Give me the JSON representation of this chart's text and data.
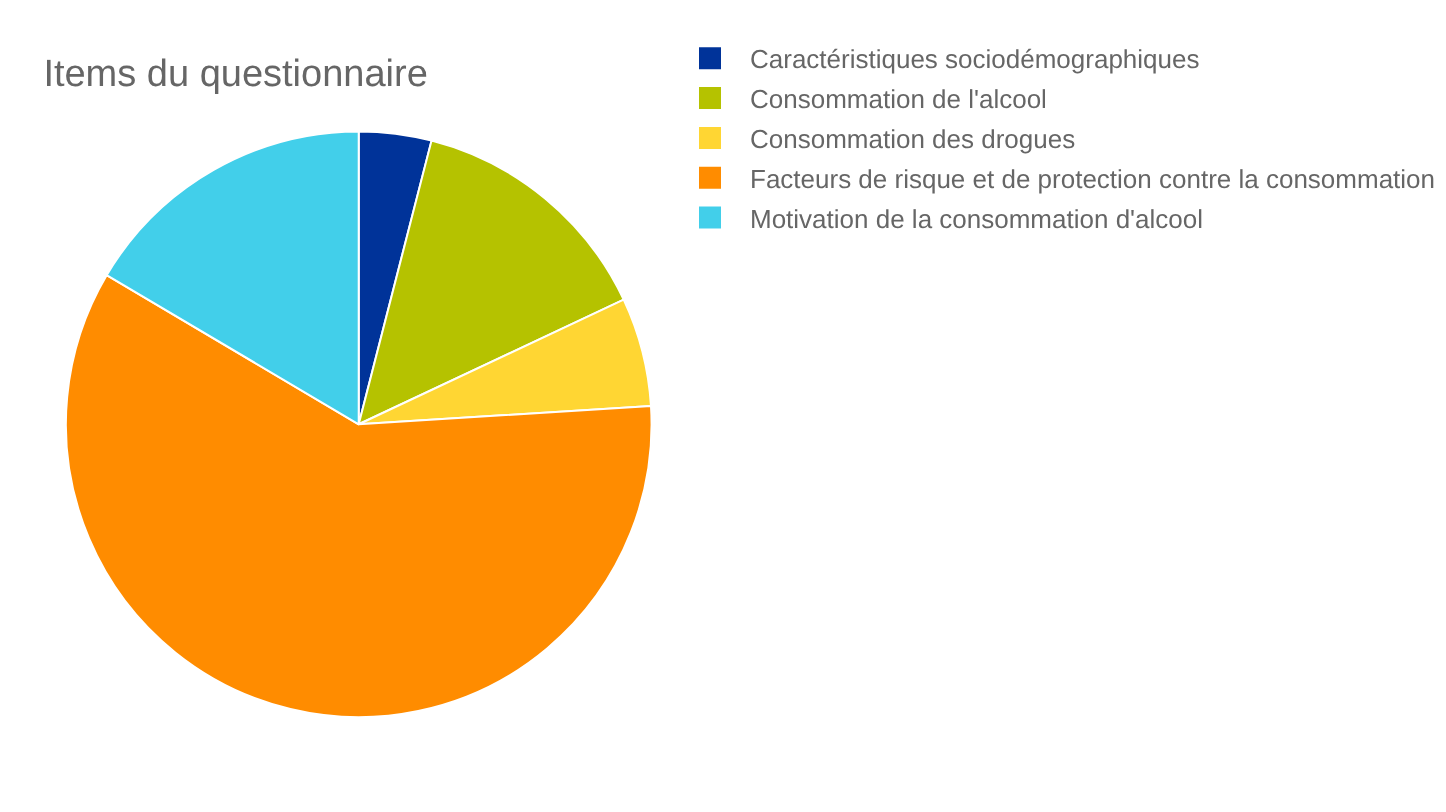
{
  "chart_data": {
    "type": "pie",
    "title": "Items du questionnaire",
    "categories": [
      "Caractéristiques sociodémographiques",
      "Consommation de l'alcool",
      "Consommation des drogues",
      "Facteurs de risque et de protection contre la consommation",
      "Motivation de la consommation d'alcool"
    ],
    "values": [
      4,
      14,
      6,
      59.5,
      16.5
    ],
    "colors": [
      "#003399",
      "#b5c200",
      "#ffd633",
      "#ff8c00",
      "#42cfea"
    ],
    "legend": "right"
  }
}
